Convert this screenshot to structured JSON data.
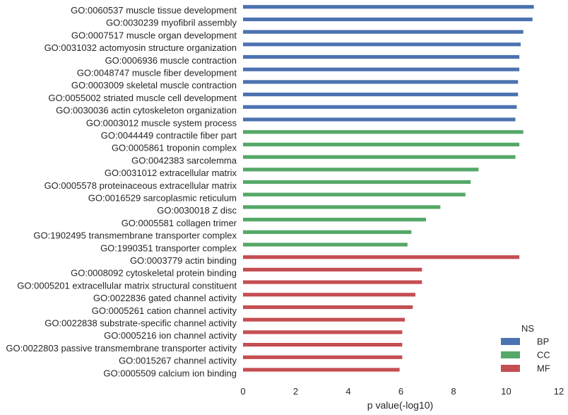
{
  "chart_data": {
    "type": "bar",
    "orientation": "horizontal",
    "xlabel": "p value(-log10)",
    "xlim": [
      0,
      12
    ],
    "xticks": [
      0,
      2,
      4,
      6,
      8,
      10,
      12
    ],
    "grid": false,
    "legend": {
      "title": "NS",
      "placement": "bottom-right",
      "entries": [
        {
          "name": "BP",
          "color": "#4c72b0"
        },
        {
          "name": "CC",
          "color": "#55a868"
        },
        {
          "name": "MF",
          "color": "#c44e52"
        }
      ]
    },
    "series": [
      {
        "name": "BP",
        "color": "#4c72b0",
        "items": [
          {
            "label": "GO:0060537 muscle tissue development",
            "value": 11.05
          },
          {
            "label": "GO:0030239 myofibril assembly",
            "value": 11.0
          },
          {
            "label": "GO:0007517 muscle organ development",
            "value": 10.65
          },
          {
            "label": "GO:0031032 actomyosin structure organization",
            "value": 10.55
          },
          {
            "label": "GO:0006936 muscle contraction",
            "value": 10.5
          },
          {
            "label": "GO:0048747 muscle fiber development",
            "value": 10.5
          },
          {
            "label": "GO:0003009 skeletal muscle contraction",
            "value": 10.45
          },
          {
            "label": "GO:0055002 striated muscle cell development",
            "value": 10.45
          },
          {
            "label": "GO:0030036 actin cytoskeleton organization",
            "value": 10.4
          },
          {
            "label": "GO:0003012 muscle system process",
            "value": 10.35
          }
        ]
      },
      {
        "name": "CC",
        "color": "#55a868",
        "items": [
          {
            "label": "GO:0044449 contractile fiber part",
            "value": 10.65
          },
          {
            "label": "GO:0005861 troponin complex",
            "value": 10.5
          },
          {
            "label": "GO:0042383 sarcolemma",
            "value": 10.35
          },
          {
            "label": "GO:0031012 extracellular matrix",
            "value": 8.95
          },
          {
            "label": "GO:0005578 proteinaceous extracellular matrix",
            "value": 8.65
          },
          {
            "label": "GO:0016529 sarcoplasmic reticulum",
            "value": 8.45
          },
          {
            "label": "GO:0030018 Z disc",
            "value": 7.5
          },
          {
            "label": "GO:0005581 collagen trimer",
            "value": 6.95
          },
          {
            "label": "GO:1902495 transmembrane transporter complex",
            "value": 6.4
          },
          {
            "label": "GO:1990351 transporter complex",
            "value": 6.25
          }
        ]
      },
      {
        "name": "MF",
        "color": "#c44e52",
        "items": [
          {
            "label": "GO:0003779 actin binding",
            "value": 10.5
          },
          {
            "label": "GO:0008092 cytoskeletal protein binding",
            "value": 6.8
          },
          {
            "label": "GO:0005201 extracellular matrix structural constituent",
            "value": 6.8
          },
          {
            "label": "GO:0022836 gated channel activity",
            "value": 6.55
          },
          {
            "label": "GO:0005261 cation channel activity",
            "value": 6.45
          },
          {
            "label": "GO:0022838 substrate-specific channel activity",
            "value": 6.15
          },
          {
            "label": "GO:0005216 ion channel activity",
            "value": 6.05
          },
          {
            "label": "GO:0022803 passive transmembrane transporter activity",
            "value": 6.05
          },
          {
            "label": "GO:0015267 channel activity",
            "value": 6.05
          },
          {
            "label": "GO:0005509 calcium ion binding",
            "value": 5.95
          }
        ]
      }
    ]
  }
}
